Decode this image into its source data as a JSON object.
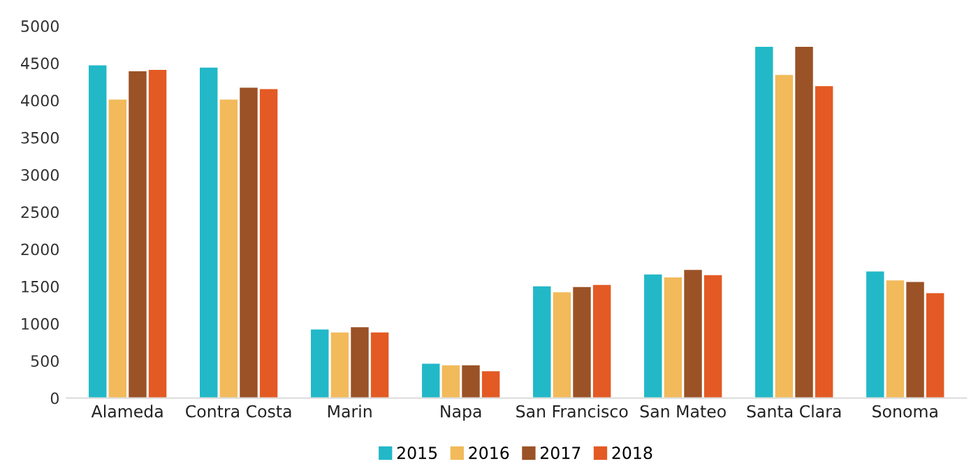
{
  "chart_data": {
    "type": "bar",
    "categories": [
      "Alameda",
      "Contra Costa",
      "Marin",
      "Napa",
      "San Francisco",
      "San Mateo",
      "Santa Clara",
      "Sonoma"
    ],
    "series": [
      {
        "name": "2015",
        "color": "#22b8c8",
        "values": [
          4470,
          4440,
          920,
          460,
          1500,
          1660,
          4720,
          1700
        ]
      },
      {
        "name": "2016",
        "color": "#f2ba5a",
        "values": [
          4010,
          4010,
          880,
          440,
          1420,
          1620,
          4340,
          1580
        ]
      },
      {
        "name": "2017",
        "color": "#9a5226",
        "values": [
          4390,
          4170,
          950,
          440,
          1490,
          1720,
          4720,
          1560
        ]
      },
      {
        "name": "2018",
        "color": "#e35a24",
        "values": [
          4410,
          4150,
          880,
          360,
          1520,
          1650,
          4190,
          1410
        ]
      }
    ],
    "ylim": [
      0,
      5000
    ],
    "yticks": [
      0,
      500,
      1000,
      1500,
      2000,
      2500,
      3000,
      3500,
      4000,
      4500,
      5000
    ],
    "grid": false,
    "legend": "bottom"
  }
}
